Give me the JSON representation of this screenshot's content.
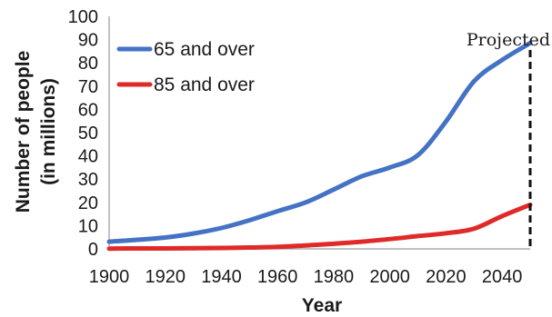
{
  "chart_data": {
    "type": "line",
    "xlabel": "Year",
    "ylabel_line1": "Number of people",
    "ylabel_line2": "(in millions)",
    "xlim": [
      1900,
      2050
    ],
    "ylim": [
      0,
      100
    ],
    "x_ticks": [
      1900,
      1920,
      1940,
      1960,
      1980,
      2000,
      2020,
      2040
    ],
    "y_ticks": [
      0,
      10,
      20,
      30,
      40,
      50,
      60,
      70,
      80,
      90,
      100
    ],
    "grid": false,
    "legend_position": "top-left",
    "projection_marker": {
      "x": 2050,
      "label": "Projected"
    },
    "series": [
      {
        "name": "65 and over",
        "color": "#4472c4",
        "x": [
          1900,
          1910,
          1920,
          1930,
          1940,
          1950,
          1960,
          1970,
          1980,
          1990,
          2000,
          2010,
          2020,
          2030,
          2040,
          2050
        ],
        "values": [
          3.1,
          3.9,
          4.9,
          6.6,
          9.0,
          12.3,
          16.2,
          20.0,
          25.5,
          31.2,
          35.0,
          40.3,
          54.8,
          72.1,
          81.2,
          88.5
        ]
      },
      {
        "name": "85 and over",
        "color": "#e02a2a",
        "x": [
          1900,
          1910,
          1920,
          1930,
          1940,
          1950,
          1960,
          1970,
          1980,
          1990,
          2000,
          2010,
          2020,
          2030,
          2040,
          2050
        ],
        "values": [
          0.1,
          0.2,
          0.2,
          0.3,
          0.4,
          0.6,
          0.9,
          1.5,
          2.2,
          3.1,
          4.2,
          5.5,
          6.7,
          8.7,
          14.1,
          19.0
        ]
      }
    ]
  }
}
